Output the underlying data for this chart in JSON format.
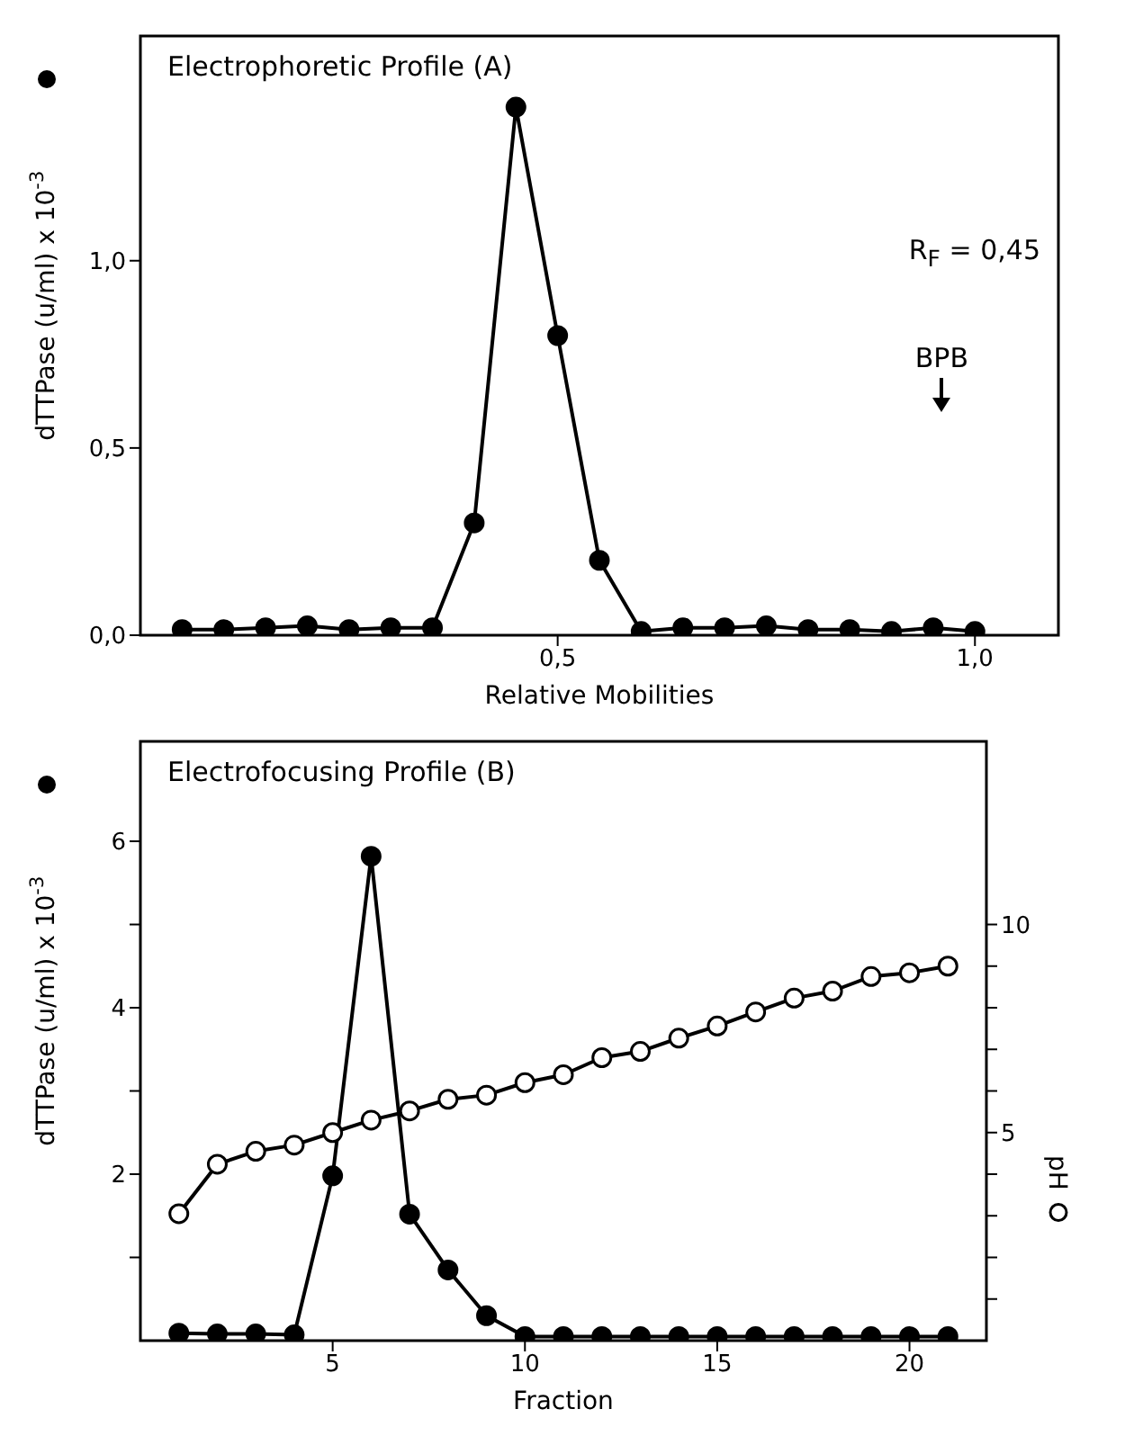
{
  "chart_data": [
    {
      "type": "line",
      "title": "Electrophoretic Profile (A)",
      "xlabel": "Relative Mobilities",
      "ylabel": "dTTPase (u/ml) x 10$^{-3}$",
      "marker": "circle",
      "line_style": "solid",
      "x": [
        0.05,
        0.1,
        0.15,
        0.2,
        0.25,
        0.3,
        0.35,
        0.4,
        0.45,
        0.5,
        0.55,
        0.6,
        0.65,
        0.7,
        0.75,
        0.8,
        0.85,
        0.9,
        0.95,
        1.0
      ],
      "series": [
        {
          "color": "#000000",
          "values": [
            0.015,
            0.015,
            0.02,
            0.025,
            0.015,
            0.02,
            0.02,
            0.3,
            1.41,
            0.8,
            0.2,
            0.01,
            0.02,
            0.02,
            0.025,
            0.015,
            0.015,
            0.01,
            0.02,
            0.01
          ]
        }
      ],
      "xlim": [
        0,
        1.1
      ],
      "xticks": [
        {
          "value": 0.5,
          "label": "0,5"
        },
        {
          "value": 1.0,
          "label": "1,0"
        }
      ],
      "ylim": [
        0,
        1.6
      ],
      "yticks": [
        {
          "value": 0,
          "label": "0,0"
        },
        {
          "value": 0.5,
          "label": "0,5"
        },
        {
          "value": 1.0,
          "label": "1,0"
        }
      ],
      "annotations": [
        "R$_{F}$ = 0,45",
        "BPB"
      ]
    },
    {
      "type": "line",
      "title": "Electrofocusing Profile (B)",
      "xlabel": "Fraction",
      "ylabel": "dTTPase (u/ml) x 10$^{-3}$",
      "y2label": "pH",
      "marker": "circle",
      "line_style": "solid",
      "x": [
        1,
        2,
        3,
        4,
        5,
        6,
        7,
        8,
        9,
        10,
        11,
        12,
        13,
        14,
        15,
        16,
        17,
        18,
        19,
        20,
        21
      ],
      "series": [
        {
          "color": "#000000",
          "values": [
            0.09,
            0.08,
            0.08,
            0.07,
            1.98,
            5.82,
            1.52,
            0.85,
            0.3,
            0.05,
            0.05,
            0.05,
            0.05,
            0.05,
            0.05,
            0.05,
            0.05,
            0.05,
            0.05,
            0.05,
            0.05
          ]
        },
        {
          "color": "#000000",
          "axis": "y2",
          "values": [
            3.05,
            4.24,
            4.55,
            4.7,
            5.0,
            5.3,
            5.52,
            5.8,
            5.9,
            6.2,
            6.39,
            6.8,
            6.95,
            7.27,
            7.56,
            7.9,
            8.23,
            8.4,
            8.75,
            8.84,
            9.0
          ]
        }
      ],
      "xlim": [
        0,
        22
      ],
      "xticks": [
        5,
        10,
        15,
        20
      ],
      "ylim": [
        0,
        7.2
      ],
      "yticks": [
        {
          "value": 1,
          "label": null
        },
        2,
        {
          "value": 3,
          "label": null
        },
        4,
        {
          "value": 5,
          "label": null
        },
        6
      ],
      "y2lim": [
        0,
        14.4
      ],
      "y2ticks": [
        {
          "value": 1,
          "label": null
        },
        {
          "value": 2,
          "label": null
        },
        {
          "value": 3,
          "label": null
        },
        {
          "value": 4,
          "label": null
        },
        5,
        {
          "value": 6,
          "label": null
        },
        {
          "value": 7,
          "label": null
        },
        {
          "value": 8,
          "label": null
        },
        {
          "value": 9,
          "label": null
        },
        10
      ]
    }
  ]
}
